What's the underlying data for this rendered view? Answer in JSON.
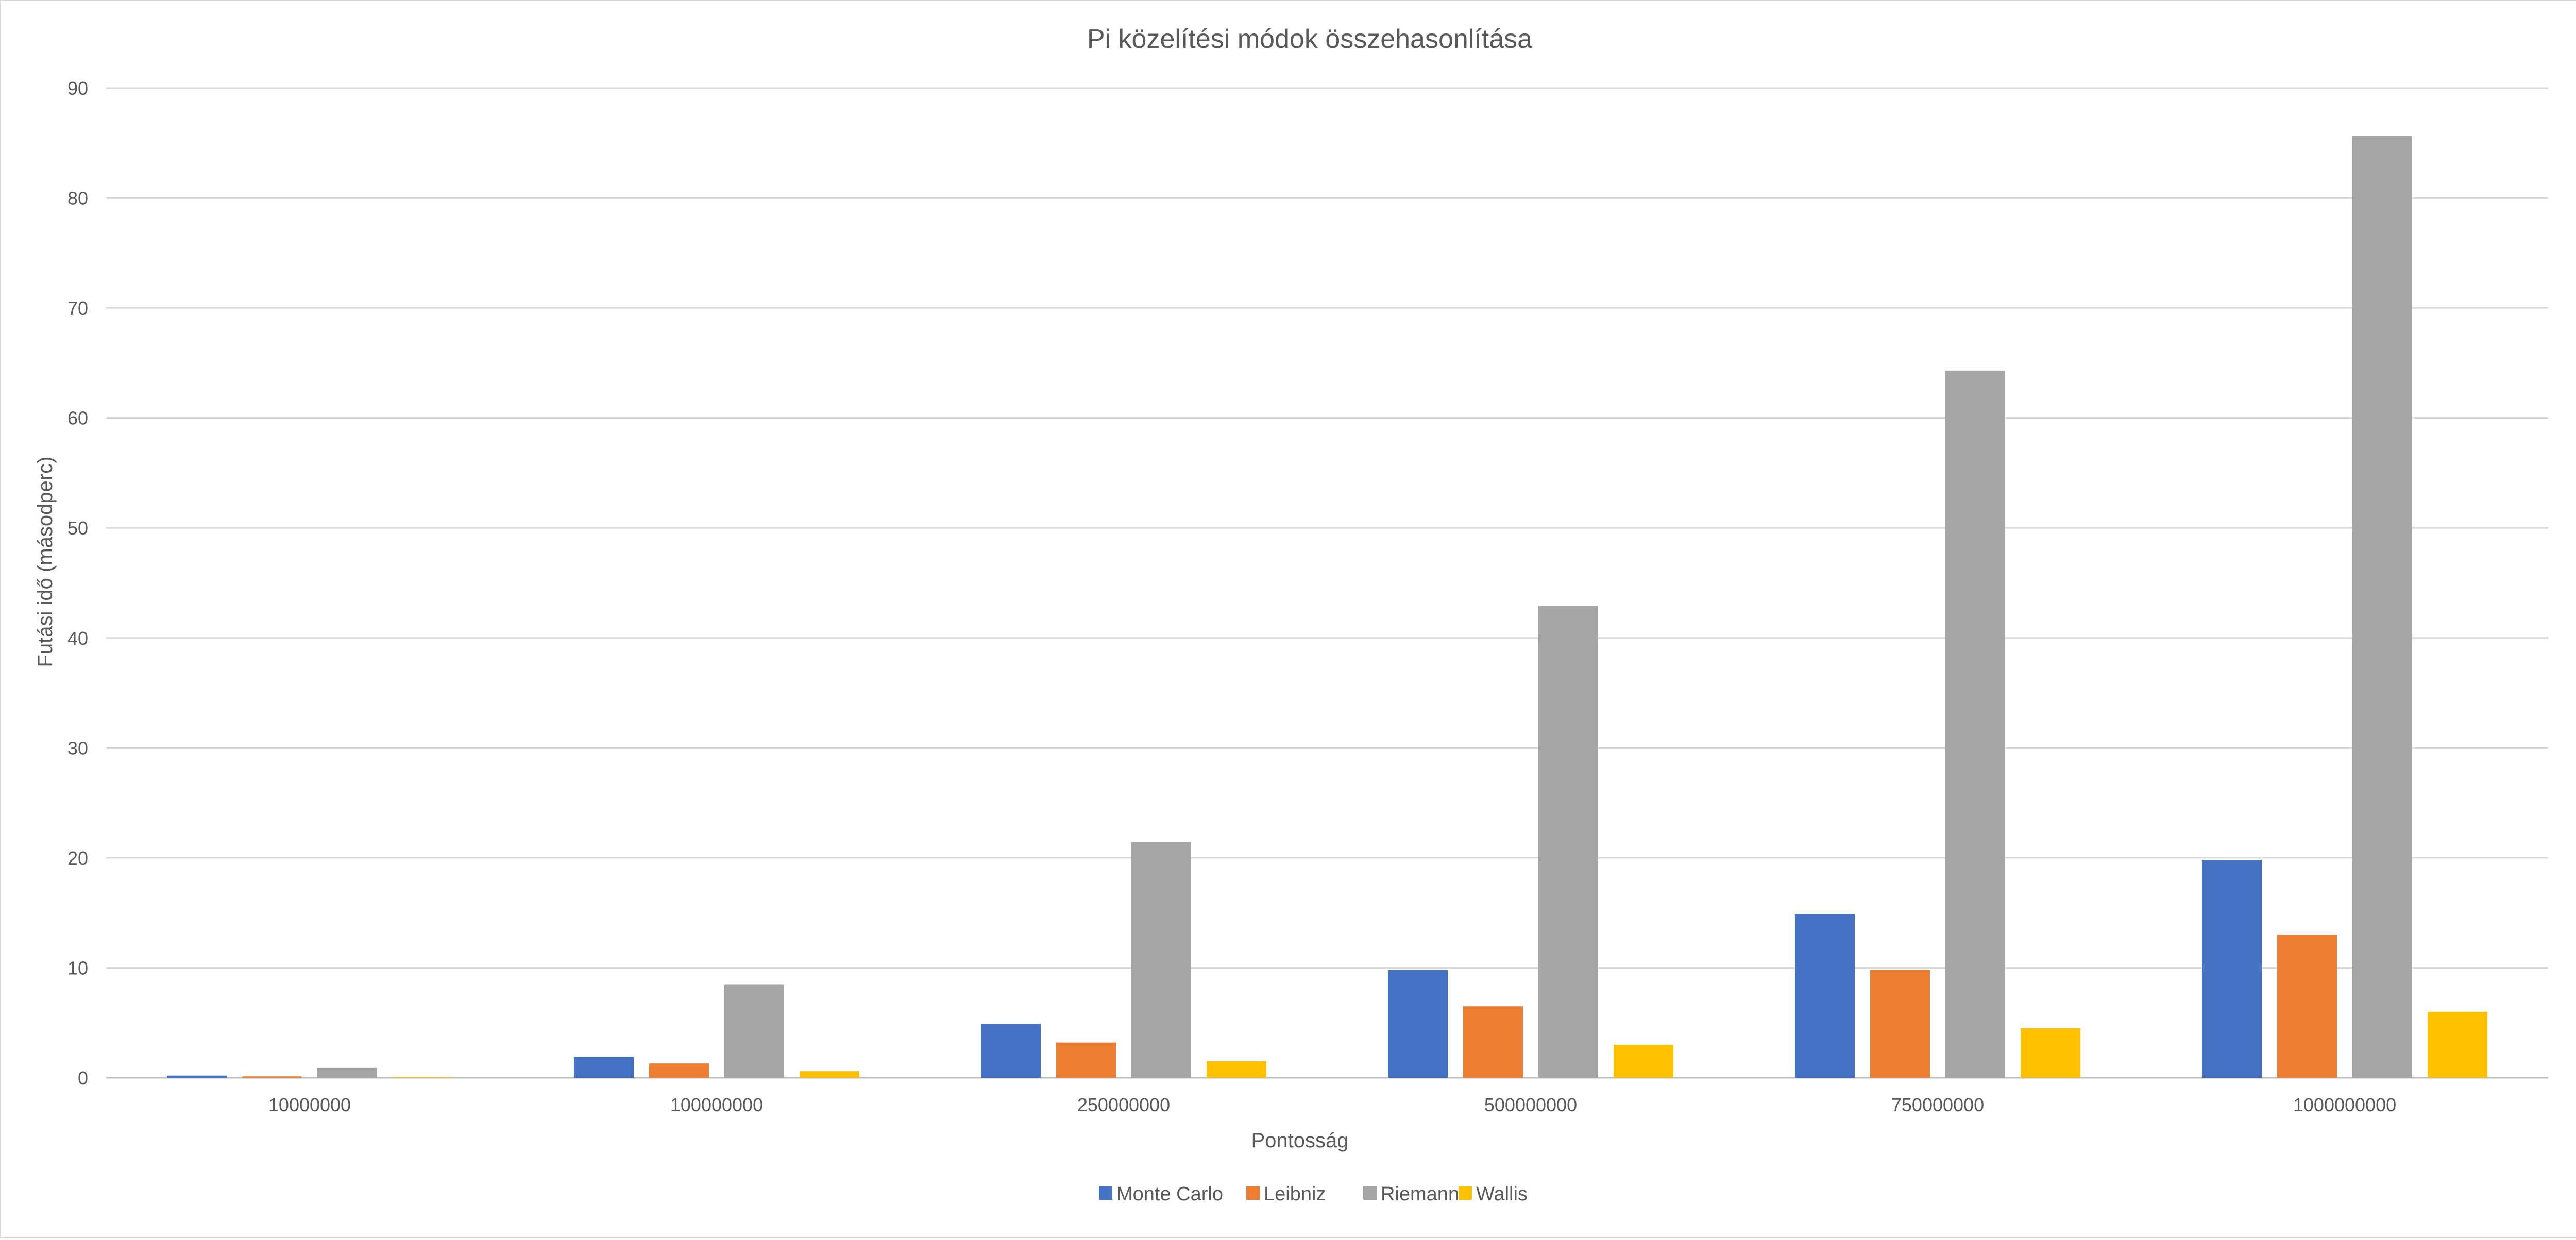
{
  "chart_data": {
    "type": "bar",
    "title": "Pi közelítési módok összehasonlítása",
    "xlabel": "Pontosság",
    "ylabel": "Futási idő (másodperc)",
    "categories": [
      "10000000",
      "100000000",
      "250000000",
      "500000000",
      "750000000",
      "1000000000"
    ],
    "series": [
      {
        "name": "Monte Carlo",
        "color": "#4472C4",
        "values": [
          0.2,
          1.9,
          4.9,
          9.8,
          14.9,
          19.8
        ]
      },
      {
        "name": "Leibniz",
        "color": "#ED7D31",
        "values": [
          0.13,
          1.3,
          3.2,
          6.5,
          9.8,
          13.0
        ]
      },
      {
        "name": "Riemann",
        "color": "#A5A5A5",
        "values": [
          0.9,
          8.5,
          21.4,
          42.9,
          64.3,
          85.6
        ]
      },
      {
        "name": "Wallis",
        "color": "#FFC000",
        "values": [
          0.06,
          0.6,
          1.5,
          3.0,
          4.5,
          6.0
        ]
      }
    ],
    "ylim": [
      0,
      90
    ],
    "yticks": [
      0,
      10,
      20,
      30,
      40,
      50,
      60,
      70,
      80,
      90
    ],
    "grid": true,
    "legend": "bottom"
  }
}
